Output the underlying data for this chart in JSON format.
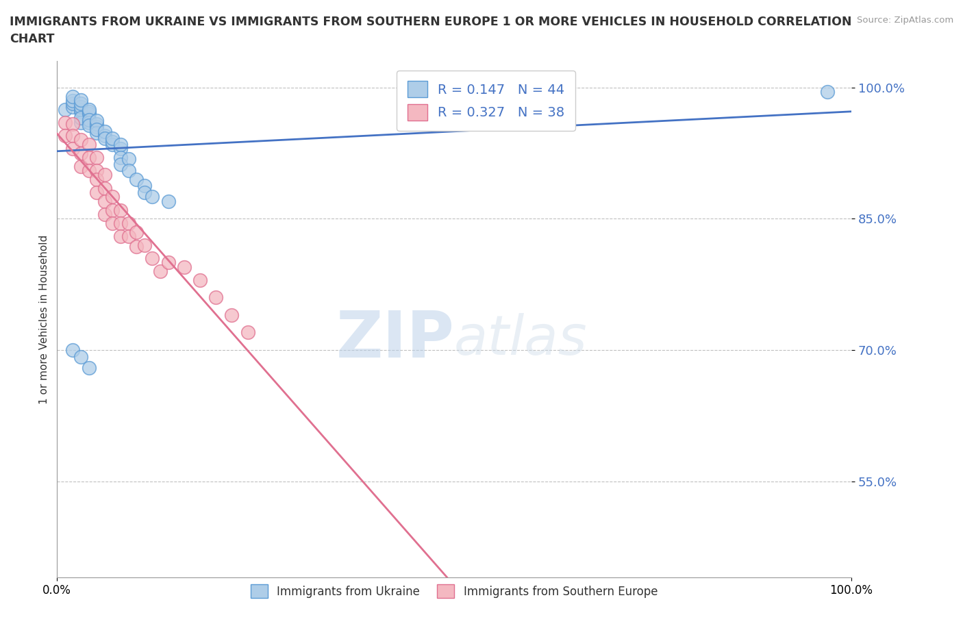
{
  "title_line1": "IMMIGRANTS FROM UKRAINE VS IMMIGRANTS FROM SOUTHERN EUROPE 1 OR MORE VEHICLES IN HOUSEHOLD CORRELATION",
  "title_line2": "CHART",
  "source_text": "Source: ZipAtlas.com",
  "ylabel": "1 or more Vehicles in Household",
  "xlim": [
    0,
    1.0
  ],
  "ylim": [
    0.44,
    1.03
  ],
  "yticks": [
    0.55,
    0.7,
    0.85,
    1.0
  ],
  "ytick_labels": [
    "55.0%",
    "70.0%",
    "85.0%",
    "100.0%"
  ],
  "xticks": [
    0.0,
    1.0
  ],
  "xtick_labels": [
    "0.0%",
    "100.0%"
  ],
  "ukraine_color": "#aecde8",
  "ukraine_edge": "#5b9bd5",
  "southern_color": "#f4b8c1",
  "southern_edge": "#e07090",
  "ukraine_line_color": "#4472c4",
  "southern_line_color": "#e07090",
  "R_ukraine": 0.147,
  "N_ukraine": 44,
  "R_southern": 0.327,
  "N_southern": 38,
  "legend_label_ukraine": "Immigrants from Ukraine",
  "legend_label_southern": "Immigrants from Southern Europe",
  "watermark_zip": "ZIP",
  "watermark_atlas": "atlas",
  "ukraine_x": [
    0.01,
    0.02,
    0.02,
    0.02,
    0.02,
    0.03,
    0.03,
    0.03,
    0.03,
    0.03,
    0.03,
    0.03,
    0.04,
    0.04,
    0.04,
    0.04,
    0.04,
    0.04,
    0.05,
    0.05,
    0.05,
    0.05,
    0.05,
    0.06,
    0.06,
    0.06,
    0.07,
    0.07,
    0.07,
    0.08,
    0.08,
    0.08,
    0.08,
    0.09,
    0.09,
    0.1,
    0.11,
    0.11,
    0.12,
    0.14,
    0.02,
    0.03,
    0.04,
    0.97
  ],
  "ukraine_y": [
    0.975,
    0.978,
    0.982,
    0.985,
    0.99,
    0.972,
    0.975,
    0.978,
    0.982,
    0.986,
    0.96,
    0.965,
    0.97,
    0.972,
    0.975,
    0.96,
    0.963,
    0.957,
    0.955,
    0.958,
    0.962,
    0.948,
    0.952,
    0.945,
    0.95,
    0.942,
    0.935,
    0.938,
    0.942,
    0.93,
    0.935,
    0.92,
    0.912,
    0.918,
    0.905,
    0.895,
    0.888,
    0.88,
    0.875,
    0.87,
    0.7,
    0.692,
    0.68,
    0.995
  ],
  "southern_x": [
    0.01,
    0.01,
    0.02,
    0.02,
    0.02,
    0.03,
    0.03,
    0.03,
    0.04,
    0.04,
    0.04,
    0.05,
    0.05,
    0.05,
    0.05,
    0.06,
    0.06,
    0.06,
    0.06,
    0.07,
    0.07,
    0.07,
    0.08,
    0.08,
    0.08,
    0.09,
    0.09,
    0.1,
    0.1,
    0.11,
    0.12,
    0.13,
    0.14,
    0.16,
    0.18,
    0.2,
    0.22,
    0.24
  ],
  "southern_y": [
    0.96,
    0.945,
    0.958,
    0.945,
    0.93,
    0.94,
    0.925,
    0.91,
    0.935,
    0.92,
    0.905,
    0.92,
    0.905,
    0.895,
    0.88,
    0.9,
    0.885,
    0.87,
    0.855,
    0.875,
    0.86,
    0.845,
    0.86,
    0.845,
    0.83,
    0.845,
    0.83,
    0.835,
    0.818,
    0.82,
    0.805,
    0.79,
    0.8,
    0.795,
    0.78,
    0.76,
    0.74,
    0.72
  ]
}
